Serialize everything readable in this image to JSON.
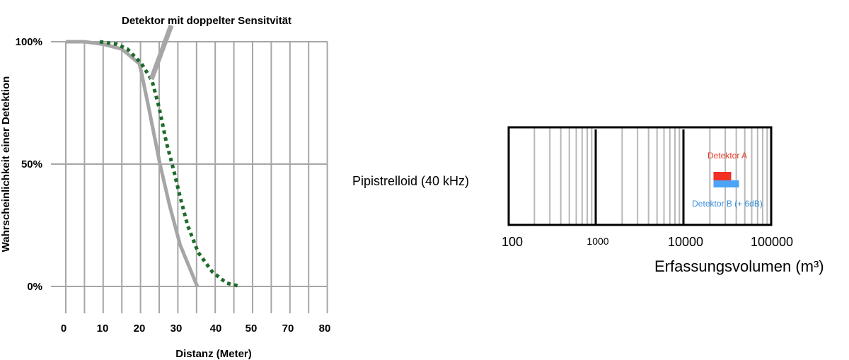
{
  "chart_data": [
    {
      "type": "line",
      "annotation": "Detektor mit doppelter Sensitvität",
      "xlabel": "Distanz (Meter)",
      "ylabel": "Wahrscheinlichkeit einer Detektion",
      "x_tick_labels": [
        "0",
        "10",
        "20",
        "30",
        "40",
        "50",
        "70",
        "80"
      ],
      "y_tick_labels": [
        "0%",
        "50%",
        "100%"
      ],
      "xlim": [
        0,
        70
      ],
      "ylim": [
        0,
        100
      ],
      "grid": true,
      "series": [
        {
          "style": "solid",
          "color": "#a6a6a6",
          "points": [
            [
              0,
              100
            ],
            [
              5,
              100
            ],
            [
              10,
              99
            ],
            [
              15,
              97
            ],
            [
              19.7,
              91
            ],
            [
              20.3,
              87
            ],
            [
              22.2,
              73
            ],
            [
              25.2,
              50
            ],
            [
              27.8,
              33
            ],
            [
              30.6,
              17
            ],
            [
              35.2,
              0
            ]
          ]
        },
        {
          "style": "dotted",
          "color": "#1e6b2a",
          "points": [
            [
              9.1,
              100
            ],
            [
              13.6,
              99
            ],
            [
              16.5,
              97
            ],
            [
              20.3,
              91
            ],
            [
              23.1,
              84
            ],
            [
              25,
              73
            ],
            [
              26.9,
              59
            ],
            [
              28.8,
              48
            ],
            [
              30.7,
              36
            ],
            [
              32.6,
              25
            ],
            [
              35.4,
              14
            ],
            [
              39.2,
              6
            ],
            [
              43,
              1.4
            ],
            [
              46.8,
              0
            ]
          ]
        }
      ]
    },
    {
      "type": "bar",
      "orientation": "horizontal",
      "scale": "log",
      "category": "Pipistrelloid (40 kHz)",
      "xlabel": "Erfassungsvolumen (m³)",
      "x_tick_labels": [
        "100",
        "1000",
        "10000",
        "100000"
      ],
      "xlim": [
        100,
        100000
      ],
      "series": [
        {
          "name": "Detektor A",
          "color": "#f03024",
          "range": [
            22000,
            35000
          ]
        },
        {
          "name": "Detektor B (+ 6dB)",
          "color": "#4da3f5",
          "range": [
            22000,
            43000
          ]
        }
      ]
    }
  ]
}
